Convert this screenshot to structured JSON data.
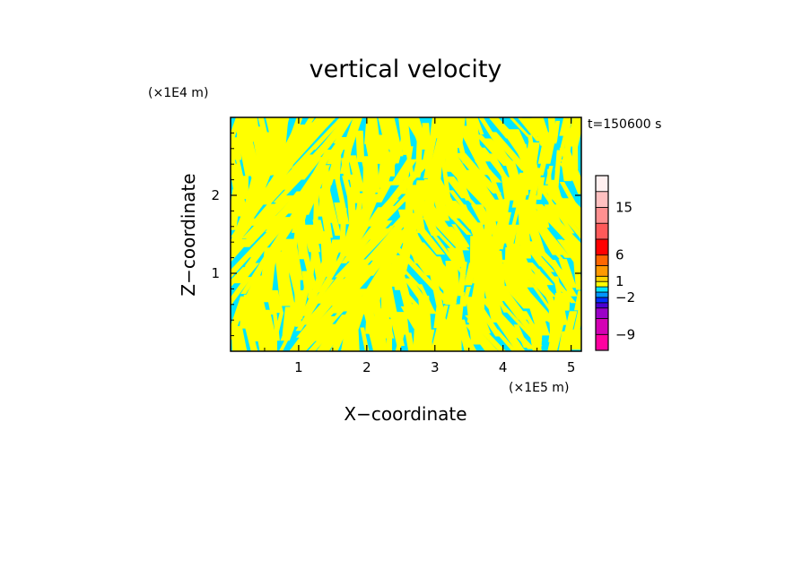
{
  "chart_data": {
    "type": "heatmap",
    "title": "vertical velocity",
    "xlabel": "X−coordinate",
    "ylabel": "Z−coordinate",
    "x_unit": "(×1E5 m)",
    "y_unit": "(×1E4 m)",
    "time_label": "t=150600 s",
    "xlim": [
      0,
      5.15
    ],
    "ylim": [
      0,
      3.0
    ],
    "x_ticks": [
      "1",
      "2",
      "3",
      "4",
      "5"
    ],
    "x_tick_values": [
      1,
      2,
      3,
      4,
      5
    ],
    "y_ticks": [
      "1",
      "2"
    ],
    "y_tick_values": [
      1,
      2
    ],
    "field_colors": {
      "positive": "#ffff00",
      "negative": "#00e5ff"
    },
    "colorbar": {
      "labels": [
        "15",
        "6",
        "1",
        "−2",
        "−9"
      ],
      "label_values": [
        15,
        6,
        1,
        -2,
        -9
      ],
      "vmin": -12,
      "vmax": 21,
      "levels": [
        {
          "min": -12,
          "max": -9,
          "color": "#ff00a0"
        },
        {
          "min": -9,
          "max": -6,
          "color": "#d400b4"
        },
        {
          "min": -6,
          "max": -4,
          "color": "#9b00c8"
        },
        {
          "min": -4,
          "max": -3,
          "color": "#4b00d2"
        },
        {
          "min": -3,
          "max": -2,
          "color": "#0030ff"
        },
        {
          "min": -2,
          "max": -1,
          "color": "#0096ff"
        },
        {
          "min": -1,
          "max": 0,
          "color": "#00e5ff"
        },
        {
          "min": 0,
          "max": 1,
          "color": "#ffff00"
        },
        {
          "min": 1,
          "max": 2,
          "color": "#ffd400"
        },
        {
          "min": 2,
          "max": 4,
          "color": "#ff9900"
        },
        {
          "min": 4,
          "max": 6,
          "color": "#ff6600"
        },
        {
          "min": 6,
          "max": 9,
          "color": "#ff0000"
        },
        {
          "min": 9,
          "max": 12,
          "color": "#ff5a5a"
        },
        {
          "min": 12,
          "max": 15,
          "color": "#ff9090"
        },
        {
          "min": 15,
          "max": 18,
          "color": "#ffc0c0"
        },
        {
          "min": 18,
          "max": 21,
          "color": "#fff0f0"
        }
      ]
    }
  }
}
